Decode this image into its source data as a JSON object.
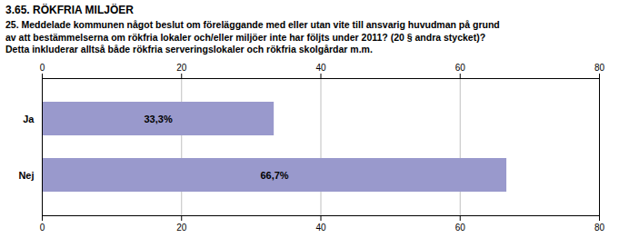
{
  "chart_data": {
    "type": "bar",
    "title": "3.65. RÖKFRIA MILJÖER",
    "subtitle": "25. Meddelade kommunen något beslut om föreläggande med eller utan vite till ansvarig huvudman på grund\nav att bestämmelserna om rökfria lokaler och/eller miljöer inte har följts under 2011? (20 § andra stycket)?\nDetta inkluderar alltså både rökfria serveringslokaler och rökfria skolgårdar m.m.",
    "categories": [
      "Nej",
      "Ja"
    ],
    "values": [
      66.7,
      33.3
    ],
    "value_labels": [
      "66,7%",
      "33,3%"
    ],
    "color": "#9999cc",
    "orientation": "horizontal",
    "xlim": [
      0,
      80
    ],
    "xticks": [
      0,
      20,
      40,
      60,
      80
    ],
    "grid": true,
    "data_labels": true
  }
}
